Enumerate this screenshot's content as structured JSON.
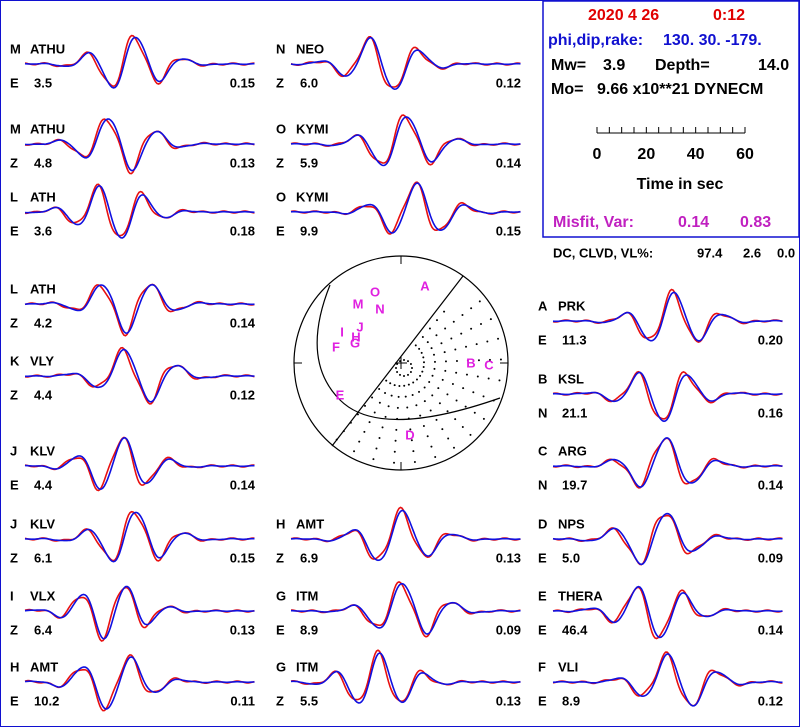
{
  "header": {
    "date": "2020  4 26",
    "time": "0:12",
    "mech_label": "phi,dip,rake:",
    "mech": "130. 30. -179.",
    "mw_label": "Mw=",
    "mw": "3.9",
    "depth_label": "Depth=",
    "depth": "14.0",
    "mo_label": "Mo=",
    "mo": "9.66 x10**21 DYNECM",
    "scale_labels": [
      "0",
      "20",
      "40",
      "60"
    ],
    "scale_title": "Time  in sec",
    "misfit_label": "Misfit, Var:",
    "misfit": "0.14",
    "var": "0.83",
    "dc_label": "DC, CLVD, VL%:",
    "dc": "97.4",
    "clvd": "2.6",
    "vl": "0.0"
  },
  "stations": [
    {
      "letter": "M",
      "name": "ATHU",
      "component": "E",
      "left": "3.5",
      "right": "0.15"
    },
    {
      "letter": "M",
      "name": "ATHU",
      "component": "Z",
      "left": "4.8",
      "right": "0.13"
    },
    {
      "letter": "L",
      "name": "ATH",
      "component": "E",
      "left": "3.6",
      "right": "0.18"
    },
    {
      "letter": "L",
      "name": "ATH",
      "component": "Z",
      "left": "4.2",
      "right": "0.14"
    },
    {
      "letter": "K",
      "name": "VLY",
      "component": "Z",
      "left": "4.4",
      "right": "0.12"
    },
    {
      "letter": "J",
      "name": "KLV",
      "component": "E",
      "left": "4.4",
      "right": "0.14"
    },
    {
      "letter": "J",
      "name": "KLV",
      "component": "Z",
      "left": "6.1",
      "right": "0.15"
    },
    {
      "letter": "I",
      "name": "VLX",
      "component": "Z",
      "left": "6.4",
      "right": "0.13"
    },
    {
      "letter": "H",
      "name": "AMT",
      "component": "E",
      "left": "10.2",
      "right": "0.11"
    },
    {
      "letter": "N",
      "name": "NEO",
      "component": "Z",
      "left": "6.0",
      "right": "0.12"
    },
    {
      "letter": "O",
      "name": "KYMI",
      "component": "Z",
      "left": "5.9",
      "right": "0.14"
    },
    {
      "letter": "O",
      "name": "KYMI",
      "component": "E",
      "left": "9.9",
      "right": "0.15"
    },
    {
      "letter": "H",
      "name": "AMT",
      "component": "Z",
      "left": "6.9",
      "right": "0.13"
    },
    {
      "letter": "G",
      "name": "ITM",
      "component": "E",
      "left": "8.9",
      "right": "0.09"
    },
    {
      "letter": "G",
      "name": "ITM",
      "component": "Z",
      "left": "5.5",
      "right": "0.13"
    },
    {
      "letter": "A",
      "name": "PRK",
      "component": "E",
      "left": "11.3",
      "right": "0.20"
    },
    {
      "letter": "B",
      "name": "KSL",
      "component": "N",
      "left": "21.1",
      "right": "0.16"
    },
    {
      "letter": "C",
      "name": "ARG",
      "component": "N",
      "left": "19.7",
      "right": "0.14"
    },
    {
      "letter": "D",
      "name": "NPS",
      "component": "E",
      "left": "5.0",
      "right": "0.09"
    },
    {
      "letter": "E",
      "name": "THERA",
      "component": "E",
      "left": "46.4",
      "right": "0.14"
    },
    {
      "letter": "F",
      "name": "VLI",
      "component": "E",
      "left": "8.9",
      "right": "0.12"
    }
  ],
  "beachball_labels": [
    "A",
    "O",
    "M",
    "N",
    "J",
    "I",
    "H",
    "G",
    "F",
    "B",
    "C",
    "E",
    "D"
  ]
}
